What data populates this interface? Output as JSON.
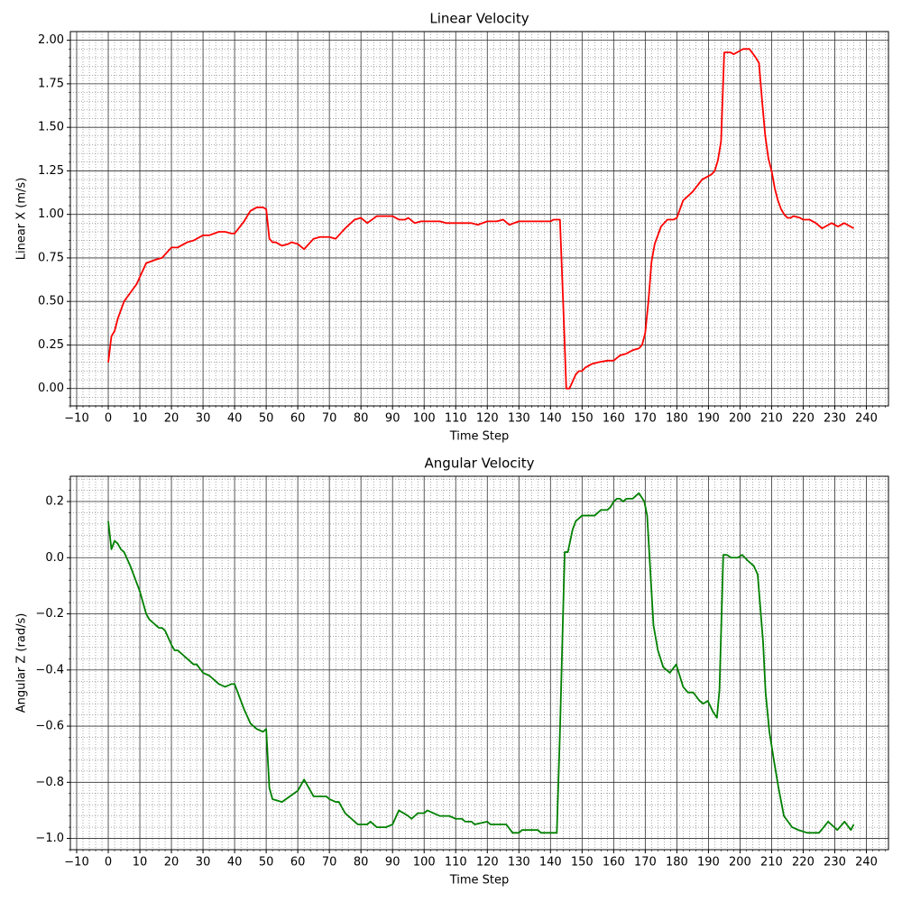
{
  "chart_data": [
    {
      "type": "line",
      "title": "Linear Velocity",
      "xlabel": "Time Step",
      "ylabel": "Linear X (m/s)",
      "color": "#ff0000",
      "x": [
        0,
        1,
        2,
        3,
        5,
        7,
        9,
        10,
        12,
        15,
        17,
        20,
        22,
        25,
        27,
        30,
        32,
        35,
        37,
        39,
        40,
        43,
        45,
        47,
        49,
        50,
        51,
        52,
        53,
        55,
        57,
        58,
        60,
        62,
        65,
        67,
        70,
        72,
        75,
        78,
        80,
        82,
        85,
        88,
        90,
        92,
        94,
        95,
        97,
        99,
        105,
        107,
        115,
        117,
        120,
        123,
        125,
        127,
        130,
        135,
        140,
        141,
        143,
        144,
        145,
        146,
        148,
        149,
        150,
        151,
        153,
        155,
        158,
        160,
        162,
        164,
        166,
        168,
        169,
        170,
        171,
        172,
        173,
        175,
        177,
        179,
        180,
        182,
        185,
        188,
        191,
        192,
        193,
        194,
        195,
        197,
        198,
        200,
        201,
        203,
        205,
        206,
        207,
        208,
        209,
        210,
        211,
        212,
        213,
        214,
        215,
        216,
        217,
        219,
        220,
        222,
        224,
        226,
        228,
        229,
        231,
        233,
        234,
        236
      ],
      "values": [
        0.15,
        0.3,
        0.33,
        0.4,
        0.5,
        0.55,
        0.6,
        0.64,
        0.72,
        0.74,
        0.75,
        0.81,
        0.81,
        0.84,
        0.85,
        0.88,
        0.88,
        0.9,
        0.9,
        0.89,
        0.89,
        0.96,
        1.02,
        1.04,
        1.04,
        1.03,
        0.86,
        0.84,
        0.84,
        0.82,
        0.83,
        0.84,
        0.83,
        0.8,
        0.86,
        0.87,
        0.87,
        0.86,
        0.92,
        0.97,
        0.98,
        0.95,
        0.99,
        0.99,
        0.99,
        0.97,
        0.97,
        0.98,
        0.95,
        0.96,
        0.96,
        0.95,
        0.95,
        0.94,
        0.96,
        0.96,
        0.97,
        0.94,
        0.96,
        0.96,
        0.96,
        0.97,
        0.97,
        0.5,
        0.0,
        0.0,
        0.08,
        0.1,
        0.1,
        0.12,
        0.14,
        0.15,
        0.16,
        0.16,
        0.19,
        0.2,
        0.22,
        0.23,
        0.25,
        0.32,
        0.5,
        0.73,
        0.83,
        0.93,
        0.97,
        0.97,
        0.98,
        1.08,
        1.13,
        1.2,
        1.23,
        1.25,
        1.31,
        1.42,
        1.93,
        1.93,
        1.92,
        1.94,
        1.95,
        1.95,
        1.9,
        1.87,
        1.65,
        1.45,
        1.32,
        1.25,
        1.15,
        1.08,
        1.03,
        1.0,
        0.98,
        0.98,
        0.99,
        0.98,
        0.97,
        0.97,
        0.95,
        0.92,
        0.94,
        0.95,
        0.93,
        0.95,
        0.94,
        0.92
      ],
      "xlim": [
        -12,
        247
      ],
      "ylim": [
        -0.1,
        2.05
      ],
      "xticks": [
        {
          "value": -10,
          "label": "−10"
        },
        0,
        10,
        20,
        30,
        40,
        50,
        60,
        70,
        80,
        90,
        100,
        110,
        120,
        130,
        140,
        150,
        160,
        170,
        180,
        190,
        200,
        210,
        220,
        230,
        240
      ],
      "yticks": [
        {
          "value": 0,
          "label": "0.00"
        },
        0.25,
        {
          "value": 0.5,
          "label": "0.50"
        },
        0.75,
        {
          "value": 1,
          "label": "1.00"
        },
        1.25,
        {
          "value": 1.5,
          "label": "1.50"
        },
        1.75,
        {
          "value": 2,
          "label": "2.00"
        }
      ],
      "grid": true,
      "minor_grid": true,
      "minor_xstep": 2,
      "minor_ystep": 0.05
    },
    {
      "type": "line",
      "title": "Angular Velocity",
      "xlabel": "Time Step",
      "ylabel": "Angular Z (rad/s)",
      "color": "#008000",
      "x": [
        0,
        1,
        2,
        3,
        4,
        5,
        7,
        10,
        12,
        13,
        15,
        16,
        17,
        18,
        20,
        21,
        22,
        25,
        27,
        28,
        30,
        32,
        35,
        37,
        39,
        40,
        42,
        43,
        45,
        47,
        49,
        50,
        51,
        52,
        55,
        60,
        62,
        63,
        65,
        69,
        70,
        72,
        73,
        75,
        77,
        79,
        82,
        83,
        85,
        88,
        90,
        92,
        95,
        96,
        98,
        100,
        101,
        103,
        105,
        108,
        110,
        112,
        113,
        115,
        116,
        120,
        121,
        126,
        128,
        130,
        131,
        136,
        137,
        142,
        143,
        144.5,
        145.5,
        147,
        148,
        150,
        154,
        156,
        158,
        159,
        160,
        161,
        162,
        163,
        164,
        166,
        167,
        168,
        169.7,
        170.6,
        172.6,
        174,
        175.7,
        177.8,
        179.8,
        182,
        183.5,
        185.2,
        187.2,
        188.4,
        189.8,
        191.5,
        192.7,
        193.5,
        194.7,
        195.8,
        197.2,
        199.3,
        200.7,
        202.4,
        204.4,
        205.6,
        207.3,
        208.1,
        209.3,
        210.7,
        212.2,
        213.9,
        216.5,
        218.5,
        221.3,
        225,
        226.5,
        227.9,
        230.8,
        233.1,
        235.1,
        236
      ],
      "values": [
        0.13,
        0.03,
        0.06,
        0.05,
        0.03,
        0.02,
        -0.03,
        -0.12,
        -0.2,
        -0.22,
        -0.24,
        -0.25,
        -0.25,
        -0.26,
        -0.31,
        -0.33,
        -0.33,
        -0.36,
        -0.38,
        -0.38,
        -0.41,
        -0.42,
        -0.45,
        -0.46,
        -0.45,
        -0.45,
        -0.51,
        -0.54,
        -0.59,
        -0.61,
        -0.62,
        -0.61,
        -0.82,
        -0.86,
        -0.87,
        -0.83,
        -0.79,
        -0.81,
        -0.85,
        -0.85,
        -0.86,
        -0.87,
        -0.87,
        -0.91,
        -0.93,
        -0.95,
        -0.95,
        -0.94,
        -0.96,
        -0.96,
        -0.95,
        -0.9,
        -0.92,
        -0.93,
        -0.91,
        -0.91,
        -0.9,
        -0.91,
        -0.92,
        -0.92,
        -0.93,
        -0.93,
        -0.94,
        -0.94,
        -0.95,
        -0.94,
        -0.95,
        -0.95,
        -0.98,
        -0.98,
        -0.97,
        -0.97,
        -0.98,
        -0.98,
        -0.62,
        0.02,
        0.02,
        0.1,
        0.13,
        0.15,
        0.15,
        0.17,
        0.17,
        0.18,
        0.2,
        0.21,
        0.21,
        0.2,
        0.21,
        0.21,
        0.22,
        0.23,
        0.2,
        0.15,
        -0.24,
        -0.33,
        -0.39,
        -0.41,
        -0.38,
        -0.46,
        -0.48,
        -0.48,
        -0.51,
        -0.52,
        -0.51,
        -0.55,
        -0.57,
        -0.47,
        0.01,
        0.01,
        0,
        0,
        0.01,
        -0.01,
        -0.03,
        -0.06,
        -0.3,
        -0.48,
        -0.62,
        -0.72,
        -0.82,
        -0.92,
        -0.96,
        -0.97,
        -0.98,
        -0.98,
        -0.96,
        -0.94,
        -0.97,
        -0.94,
        -0.97,
        -0.95
      ],
      "xlim": [
        -12,
        247
      ],
      "ylim": [
        -1.04,
        0.29
      ],
      "xticks": [
        {
          "value": -10,
          "label": "−10"
        },
        0,
        10,
        20,
        30,
        40,
        50,
        60,
        70,
        80,
        90,
        100,
        110,
        120,
        130,
        140,
        150,
        160,
        170,
        180,
        190,
        200,
        210,
        220,
        230,
        240
      ],
      "yticks": [
        {
          "value": -1,
          "label": "−1.0"
        },
        {
          "value": -0.8,
          "label": "−0.8"
        },
        {
          "value": -0.6,
          "label": "−0.6"
        },
        {
          "value": -0.4,
          "label": "−0.4"
        },
        {
          "value": -0.2,
          "label": "−0.2"
        },
        {
          "value": 0,
          "label": "0.0"
        },
        0.2
      ],
      "grid": true,
      "minor_grid": true,
      "minor_xstep": 2,
      "minor_ystep": 0.04
    }
  ]
}
